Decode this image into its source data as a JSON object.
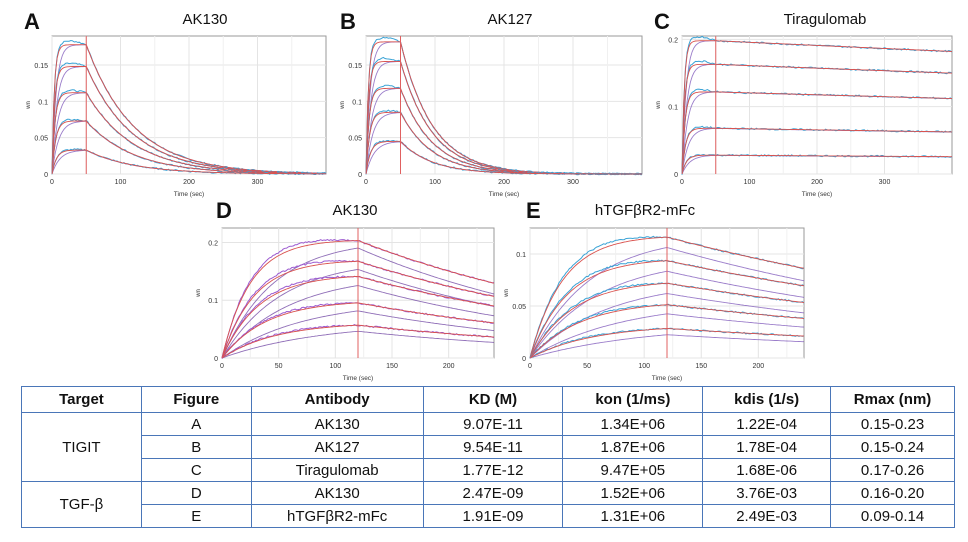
{
  "panels": [
    {
      "letter": "A",
      "title": "AK130",
      "xlabel": "Time (sec)",
      "ylabel": "wn",
      "xticks": [
        0,
        100,
        200,
        300
      ],
      "yticks": [
        {
          "v": 0,
          "t": "0"
        },
        {
          "v": 0.05,
          "t": "0.05"
        },
        {
          "v": 0.1,
          "t": "0.1"
        },
        {
          "v": 0.15,
          "t": "0.15"
        }
      ]
    },
    {
      "letter": "B",
      "title": "AK127",
      "xlabel": "Time (sec)",
      "ylabel": "wn",
      "xticks": [
        0,
        100,
        200,
        300
      ],
      "yticks": [
        {
          "v": 0,
          "t": "0"
        },
        {
          "v": 0.05,
          "t": "0.05"
        },
        {
          "v": 0.1,
          "t": "0.1"
        },
        {
          "v": 0.15,
          "t": "0.15"
        }
      ]
    },
    {
      "letter": "C",
      "title": "Tiragulomab",
      "xlabel": "Time (sec)",
      "ylabel": "wn",
      "xticks": [
        0,
        100,
        200,
        300
      ],
      "yticks": [
        {
          "v": 0,
          "t": "0"
        },
        {
          "v": 0.1,
          "t": "0.1"
        },
        {
          "v": 0.2,
          "t": "0.2"
        }
      ]
    },
    {
      "letter": "D",
      "title": "AK130",
      "xlabel": "Time (sec)",
      "ylabel": "wn",
      "xticks": [
        0,
        50,
        100,
        150,
        200
      ],
      "yticks": [
        {
          "v": 0,
          "t": "0"
        },
        {
          "v": 0.1,
          "t": "0.1"
        },
        {
          "v": 0.2,
          "t": "0.2"
        }
      ]
    },
    {
      "letter": "E",
      "title": "hTGFβR2-mFc",
      "xlabel": "Time (sec)",
      "ylabel": "wn",
      "xticks": [
        0,
        50,
        100,
        150,
        200
      ],
      "yticks": [
        {
          "v": 0,
          "t": "0"
        },
        {
          "v": 0.05,
          "t": "0.05"
        },
        {
          "v": 0.1,
          "t": "0.1"
        }
      ]
    }
  ],
  "chart_data": [
    {
      "type": "line",
      "panel": "A",
      "title": "AK130",
      "xlabel": "Time (sec)",
      "ylabel": "wn",
      "xlim": [
        0,
        400
      ],
      "ylim": [
        0,
        0.19
      ],
      "association_end": 50,
      "kon_rate": 0.3,
      "koff_rate": 0.00012,
      "plateaus": [
        0.178,
        0.148,
        0.112,
        0.073,
        0.033
      ],
      "series_colors": {
        "measured": "#3aa3d6",
        "fit": "#d9534f",
        "alt": "#7a52b8"
      }
    },
    {
      "type": "line",
      "panel": "B",
      "title": "AK127",
      "xlabel": "Time (sec)",
      "ylabel": "wn",
      "xlim": [
        0,
        400
      ],
      "ylim": [
        0,
        0.19
      ],
      "association_end": 50,
      "kon_rate": 0.3,
      "koff_rate": 0.00018,
      "plateaus": [
        0.182,
        0.155,
        0.118,
        0.085,
        0.045
      ],
      "series_colors": {
        "measured": "#3aa3d6",
        "fit": "#d9534f",
        "alt": "#7a52b8"
      }
    },
    {
      "type": "line",
      "panel": "C",
      "title": "Tiragulomab",
      "xlabel": "Time (sec)",
      "ylabel": "wn",
      "xlim": [
        0,
        400
      ],
      "ylim": [
        0,
        0.205
      ],
      "association_end": 50,
      "kon_rate": 0.3,
      "koff_rate": 2e-06,
      "plateaus": [
        0.198,
        0.163,
        0.122,
        0.068,
        0.028
      ],
      "series_colors": {
        "measured": "#3aa3d6",
        "fit": "#d9534f",
        "alt": "#7a52b8"
      }
    },
    {
      "type": "line",
      "panel": "D",
      "title": "AK130",
      "xlabel": "Time (sec)",
      "ylabel": "wn",
      "xlim": [
        0,
        240
      ],
      "ylim": [
        0,
        0.225
      ],
      "association_end": 120,
      "kon_rate": 0.04,
      "koff_rate": 0.00376,
      "plateaus": [
        0.205,
        0.17,
        0.145,
        0.1,
        0.062
      ],
      "series_colors": {
        "measured": "#9b59d0",
        "fit": "#d9534f",
        "alt": "#6b3fa0"
      }
    },
    {
      "type": "line",
      "panel": "E",
      "title": "hTGFβR2-mFc",
      "xlabel": "Time (sec)",
      "ylabel": "wn",
      "xlim": [
        0,
        240
      ],
      "ylim": [
        0,
        0.125
      ],
      "association_end": 120,
      "kon_rate": 0.035,
      "koff_rate": 0.00249,
      "plateaus": [
        0.118,
        0.096,
        0.075,
        0.055,
        0.032
      ],
      "series_colors": {
        "measured": "#3aa3d6",
        "fit": "#d9534f",
        "alt": "#7a52b8"
      }
    },
    {
      "type": "table",
      "columns": [
        "Target",
        "Figure",
        "Antibody",
        "KD (M)",
        "kon (1/ms)",
        "kdis (1/s)",
        "Rmax (nm)"
      ],
      "rows": [
        {
          "target": "TIGIT",
          "figure": "A",
          "antibody": "AK130",
          "kd": "9.07E-11",
          "kon": "1.34E+06",
          "kdis": "1.22E-04",
          "rmax": "0.15-0.23"
        },
        {
          "target": "",
          "figure": "B",
          "antibody": "AK127",
          "kd": "9.54E-11",
          "kon": "1.87E+06",
          "kdis": "1.78E-04",
          "rmax": "0.15-0.24"
        },
        {
          "target": "",
          "figure": "C",
          "antibody": "Tiragulomab",
          "kd": "1.77E-12",
          "kon": "9.47E+05",
          "kdis": "1.68E-06",
          "rmax": "0.17-0.26"
        },
        {
          "target": "TGF-β",
          "figure": "D",
          "antibody": "AK130",
          "kd": "2.47E-09",
          "kon": "1.52E+06",
          "kdis": "3.76E-03",
          "rmax": "0.16-0.20"
        },
        {
          "target": "",
          "figure": "E",
          "antibody": "hTGFβR2-mFc",
          "kd": "1.91E-09",
          "kon": "1.31E+06",
          "kdis": "2.49E-03",
          "rmax": "0.09-0.14"
        }
      ]
    }
  ],
  "table": {
    "headers": {
      "target": "Target",
      "figure": "Figure",
      "antibody": "Antibody",
      "kd": "KD (M)",
      "kon": "kon (1/ms)",
      "kdis": "kdis (1/s)",
      "rmax": "Rmax (nm)"
    },
    "groups": [
      {
        "label": "TIGIT"
      },
      {
        "label": "TGF-β"
      }
    ],
    "rows": [
      {
        "figure": "A",
        "antibody": "AK130",
        "kd": "9.07E-11",
        "kon": "1.34E+06",
        "kdis": "1.22E-04",
        "rmax": "0.15-0.23"
      },
      {
        "figure": "B",
        "antibody": "AK127",
        "kd": "9.54E-11",
        "kon": "1.87E+06",
        "kdis": "1.78E-04",
        "rmax": "0.15-0.24"
      },
      {
        "figure": "C",
        "antibody": "Tiragulomab",
        "kd": "1.77E-12",
        "kon": "9.47E+05",
        "kdis": "1.68E-06",
        "rmax": "0.17-0.26"
      },
      {
        "figure": "D",
        "antibody": "AK130",
        "kd": "2.47E-09",
        "kon": "1.52E+06",
        "kdis": "3.76E-03",
        "rmax": "0.16-0.20"
      },
      {
        "figure": "E",
        "antibody": "hTGFβR2-mFc",
        "kd": "1.91E-09",
        "kon": "1.31E+06",
        "kdis": "2.49E-03",
        "rmax": "0.09-0.14"
      }
    ]
  }
}
